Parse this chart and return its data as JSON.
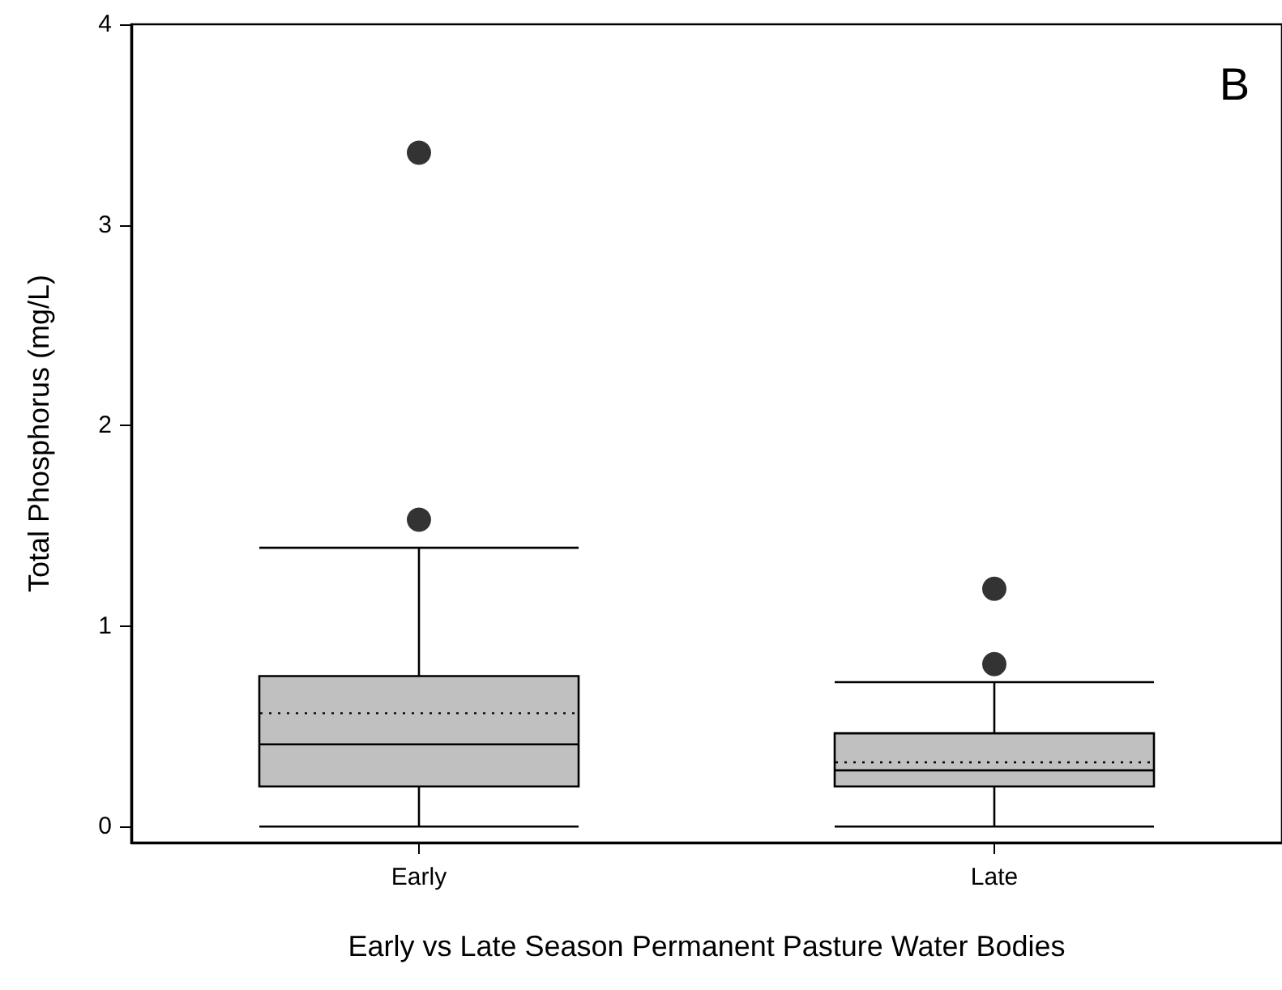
{
  "chart_data": {
    "type": "box",
    "annotations": [
      "B"
    ],
    "xlabel": "Early vs Late Season Permanent Pasture Water Bodies",
    "ylabel": "Total Phosphorus (mg/L)",
    "categories": [
      "Early",
      "Late"
    ],
    "ylim": [
      -0.08,
      4
    ],
    "yticks": [
      0,
      1,
      2,
      3,
      4
    ],
    "grid": false,
    "marker": "circle",
    "series": [
      {
        "color": "#c0c0c0",
        "boxes": [
          {
            "low": 0,
            "q1": 0.2,
            "median": 0.41,
            "q3": 0.75,
            "high": 1.39,
            "mean": 0.565,
            "outliers": [
              3.36,
              1.53
            ]
          },
          {
            "low": 0,
            "q1": 0.2,
            "median": 0.28,
            "q3": 0.465,
            "high": 0.72,
            "mean": 0.32,
            "outliers": [
              1.185,
              0.81
            ]
          }
        ]
      }
    ]
  }
}
